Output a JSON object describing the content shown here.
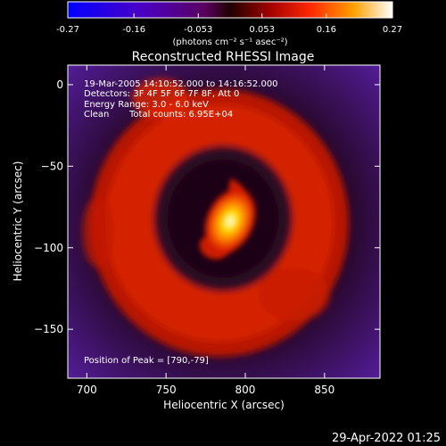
{
  "colorbar": {
    "ticks": [
      "-0.27",
      "-0.16",
      "-0.053",
      "0.053",
      "0.16",
      "0.27"
    ],
    "values": [
      -0.27,
      -0.16,
      -0.053,
      0.053,
      0.16,
      0.27
    ],
    "range": [
      -0.27,
      0.27
    ],
    "unit_label": "(photons cm⁻² s⁻¹ asec⁻²)"
  },
  "chart_data": {
    "type": "heatmap",
    "title": "Reconstructed RHESSI Image",
    "xlabel": "Heliocentric X (arcsec)",
    "ylabel": "Heliocentric Y (arcsec)",
    "xlim": [
      688,
      885
    ],
    "ylim": [
      -180,
      12
    ],
    "xticks": [
      700,
      750,
      800,
      850
    ],
    "yticks": [
      0,
      -50,
      -100,
      -150
    ],
    "xtick_labels": [
      "700",
      "750",
      "800",
      "850"
    ],
    "ytick_labels": [
      "0",
      "−50",
      "−100",
      "−150"
    ],
    "peak": [
      790,
      -79
    ],
    "colormap": "red-temperature with blue/purple negatives",
    "annotations": {
      "time": "19-Mar-2005 14:10:52.000 to 14:16:52.000",
      "detectors": "Detectors: 3F 4F 5F 6F 7F 8F, Att 0",
      "energy": "Energy Range: 3.0 - 6.0 keV",
      "clean": "Clean",
      "counts": "Total counts: 6.95E+04",
      "peak": "Position of Peak = [790,-79]"
    }
  },
  "footer": {
    "date": "29-Apr-2022 01:25"
  }
}
